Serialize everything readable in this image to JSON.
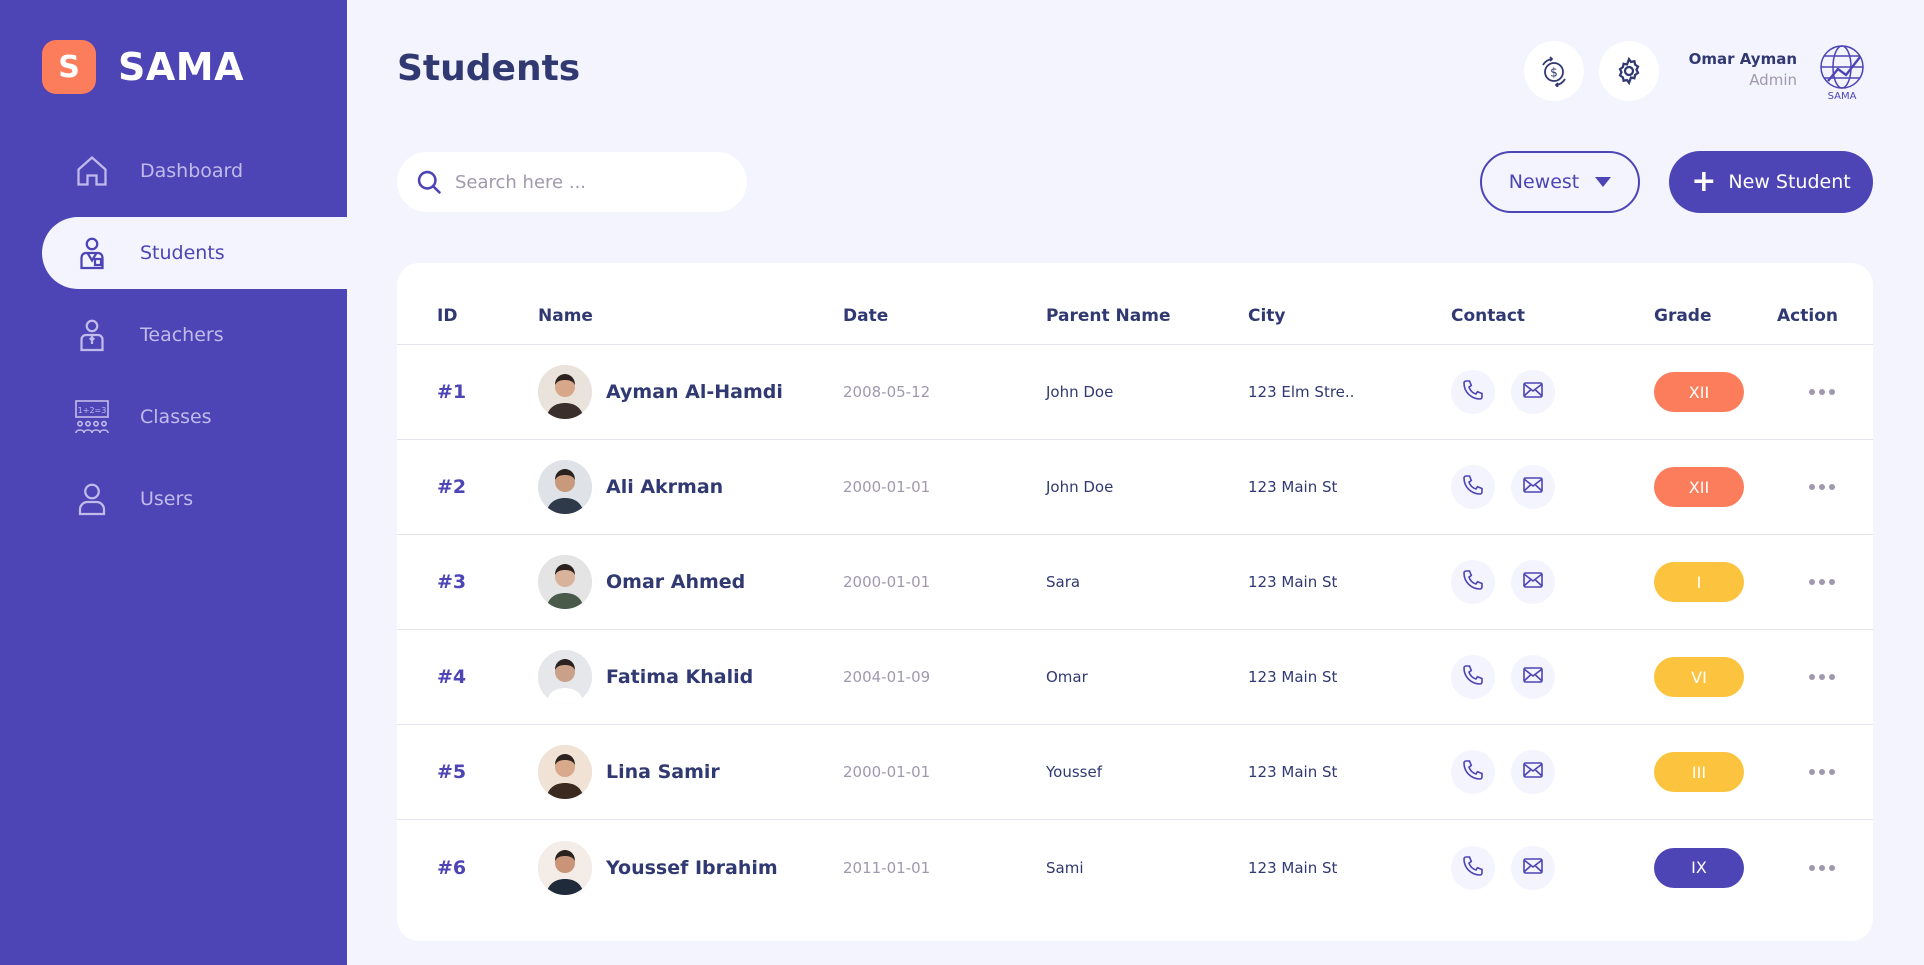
{
  "brand": {
    "logo_letter": "S",
    "name": "SAMA"
  },
  "sidebar": {
    "items": [
      {
        "label": "Dashboard",
        "icon": "home-icon",
        "active": false
      },
      {
        "label": "Students",
        "icon": "student-icon",
        "active": true
      },
      {
        "label": "Teachers",
        "icon": "teacher-icon",
        "active": false
      },
      {
        "label": "Classes",
        "icon": "classroom-icon",
        "active": false
      },
      {
        "label": "Users",
        "icon": "user-icon",
        "active": false
      }
    ]
  },
  "header": {
    "title": "Students",
    "user_name": "Omar Ayman",
    "user_role": "Admin",
    "avatar_text": "SAMA"
  },
  "toolbar": {
    "search_placeholder": "Search here ...",
    "sort_label": "Newest",
    "new_label": "New Student"
  },
  "table": {
    "columns": [
      "ID",
      "Name",
      "Date",
      "Parent Name",
      "City",
      "Contact",
      "Grade",
      "Action"
    ],
    "rows": [
      {
        "id": "#1",
        "name": "Ayman Al-Hamdi",
        "date": "2008-05-12",
        "parent": "John Doe",
        "city": "123 Elm Stre..",
        "grade": "XII",
        "grade_color": "#fb7d5b",
        "avatar_bg": "#e9e3dc",
        "shirt": "#3a2f2a",
        "skin": "#d7a789"
      },
      {
        "id": "#2",
        "name": "Ali Akrman",
        "date": "2000-01-01",
        "parent": "John Doe",
        "city": "123 Main St",
        "grade": "XII",
        "grade_color": "#fb7d5b",
        "avatar_bg": "#dfe3e8",
        "shirt": "#2e3a4a",
        "skin": "#c9997b"
      },
      {
        "id": "#3",
        "name": "Omar  Ahmed",
        "date": "2000-01-01",
        "parent": "Sara",
        "city": "123 Main St",
        "grade": "I",
        "grade_color": "#fcc43e",
        "avatar_bg": "#e4e4e4",
        "shirt": "#4a5a4a",
        "skin": "#d9b29a"
      },
      {
        "id": "#4",
        "name": "Fatima  Khalid",
        "date": "2004-01-09",
        "parent": "Omar",
        "city": "123 Main St",
        "grade": "VI",
        "grade_color": "#fcc43e",
        "avatar_bg": "#e6e7ea",
        "shirt": "#ffffff",
        "skin": "#caa088"
      },
      {
        "id": "#5",
        "name": "Lina  Samir",
        "date": "2000-01-01",
        "parent": "Youssef",
        "city": "123 Main St",
        "grade": "III",
        "grade_color": "#fcc43e",
        "avatar_bg": "#f0e2d4",
        "shirt": "#3a2a20",
        "skin": "#d8a98a"
      },
      {
        "id": "#6",
        "name": "Youssef Ibrahim",
        "date": "2011-01-01",
        "parent": "Sami",
        "city": "123 Main St",
        "grade": "IX",
        "grade_color": "#4d44b5",
        "avatar_bg": "#f4ece6",
        "shirt": "#1f2a3a",
        "skin": "#c99477"
      }
    ]
  },
  "colors": {
    "primary": "#4d44b5",
    "accent": "#fb7d5b",
    "warning": "#fcc43e",
    "text": "#303972",
    "muted": "#a098ae"
  }
}
